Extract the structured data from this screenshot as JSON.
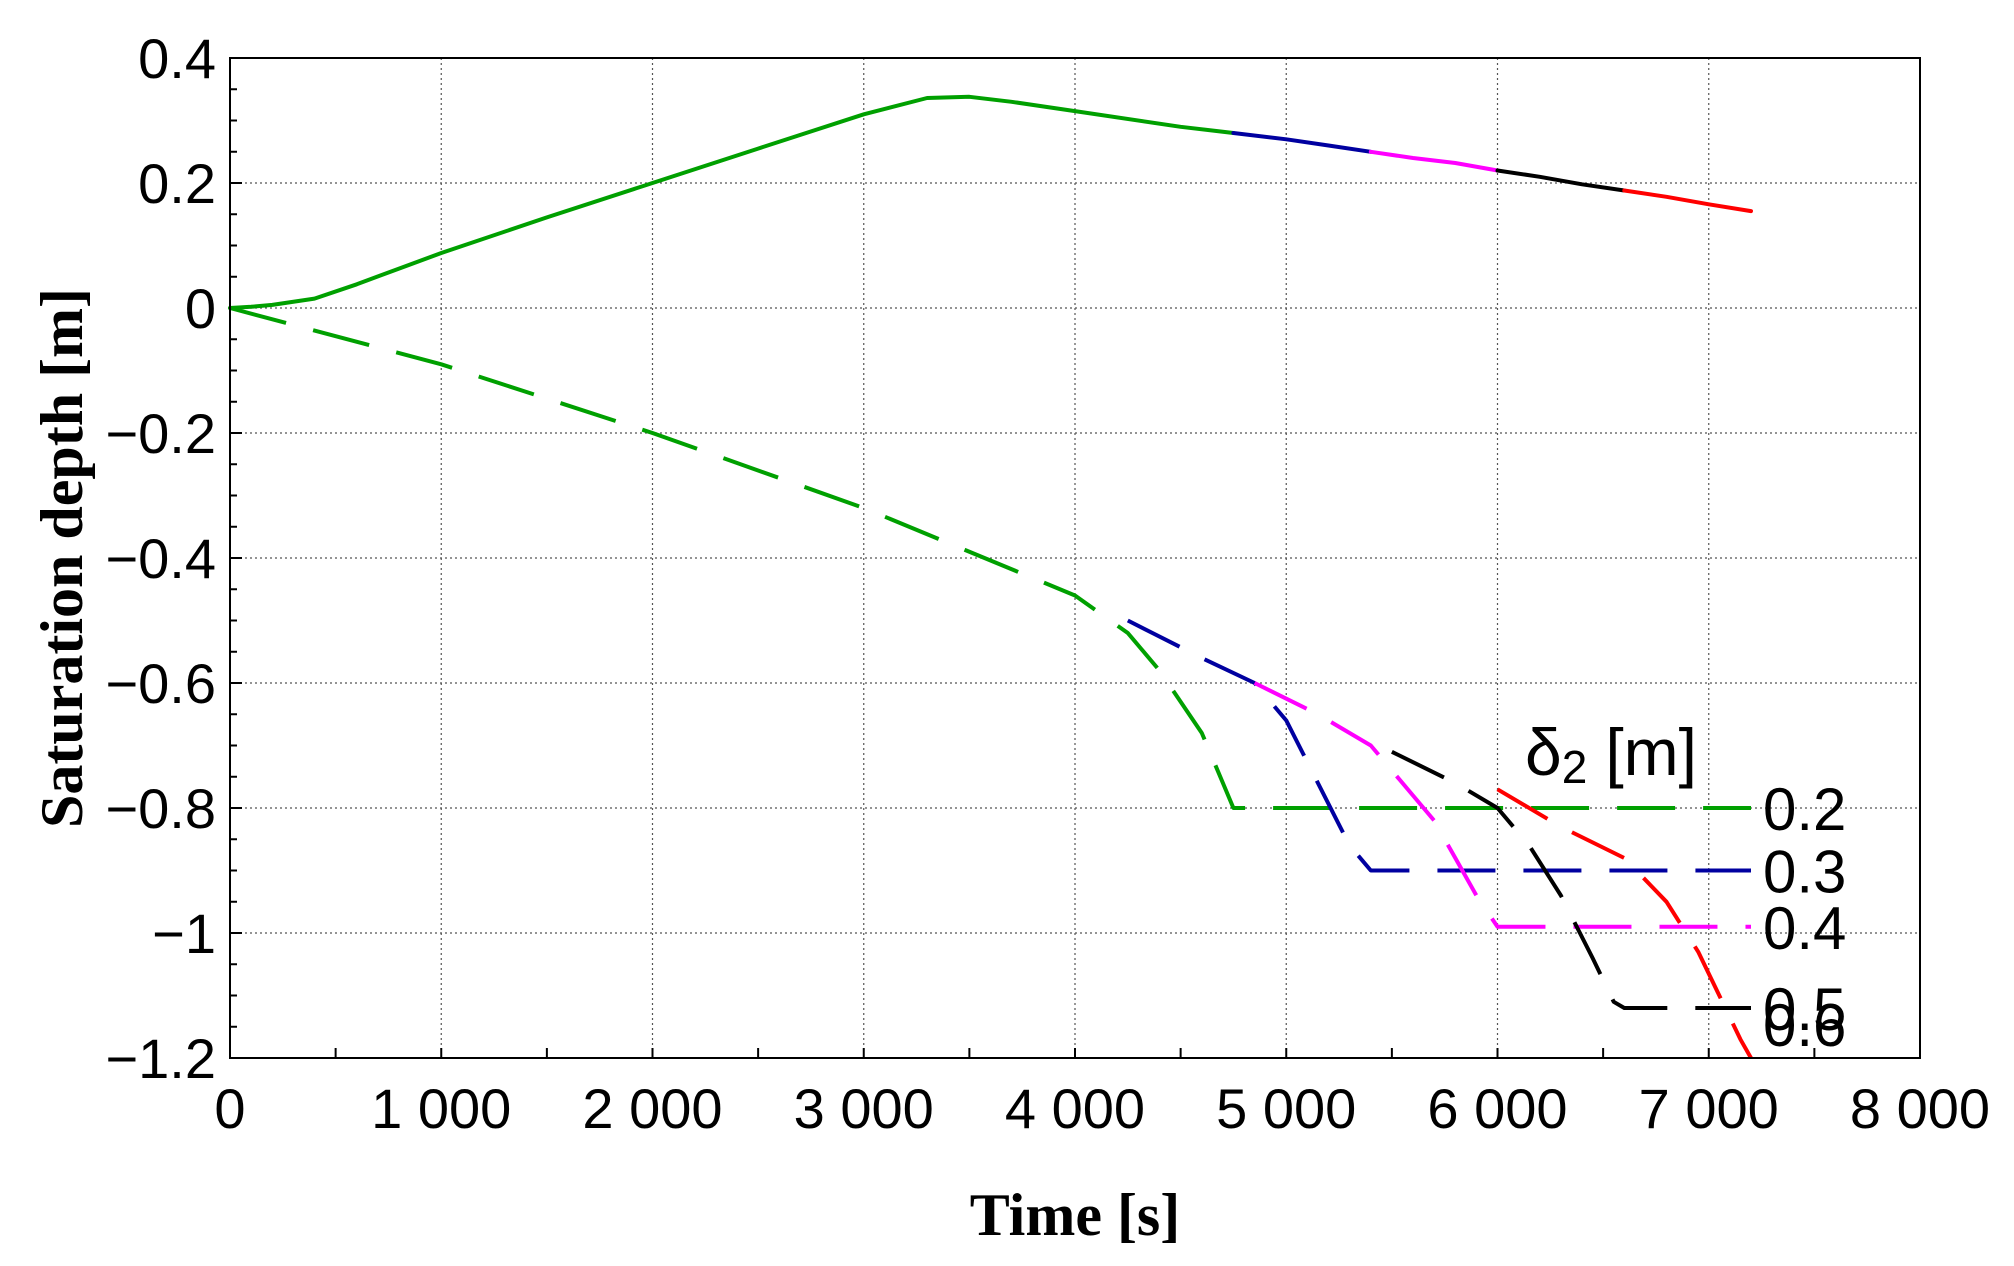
{
  "chart_data": {
    "type": "line",
    "xlabel": "Time [s]",
    "ylabel": "Saturation depth [m]",
    "xlim": [
      0,
      8000
    ],
    "ylim": [
      -1.2,
      0.4
    ],
    "x_ticks": [
      0,
      1000,
      2000,
      3000,
      4000,
      5000,
      6000,
      7000,
      8000
    ],
    "x_tick_labels": [
      "0",
      "1 000",
      "2 000",
      "3 000",
      "4 000",
      "5 000",
      "6 000",
      "7 000",
      "8 000"
    ],
    "y_ticks": [
      0.4,
      0.2,
      0,
      -0.2,
      -0.4,
      -0.6,
      -0.8,
      -1,
      -1.2
    ],
    "y_tick_labels": [
      "0.4",
      "0.2",
      "0",
      "−0.2",
      "−0.4",
      "−0.6",
      "−0.8",
      "−1",
      "−1.2"
    ],
    "grid": true,
    "legend_title_main": "δ",
    "legend_title_sub": "2",
    "legend_title_unit": "[m]",
    "legend_position": "right",
    "series": [
      {
        "name": "0.2",
        "color": "#00a000",
        "solid": [
          [
            0,
            0
          ],
          [
            100,
            0.002
          ],
          [
            200,
            0.005
          ],
          [
            400,
            0.015
          ],
          [
            600,
            0.038
          ],
          [
            800,
            0.063
          ],
          [
            1000,
            0.088
          ],
          [
            1500,
            0.145
          ],
          [
            2000,
            0.2
          ],
          [
            2500,
            0.255
          ],
          [
            3000,
            0.31
          ],
          [
            3300,
            0.336
          ],
          [
            3500,
            0.338
          ],
          [
            3700,
            0.33
          ],
          [
            4000,
            0.315
          ],
          [
            4500,
            0.29
          ],
          [
            4750,
            0.28
          ]
        ],
        "dashed": [
          [
            0,
            0
          ],
          [
            1000,
            -0.09
          ],
          [
            2000,
            -0.2
          ],
          [
            3000,
            -0.32
          ],
          [
            4000,
            -0.46
          ],
          [
            4250,
            -0.52
          ],
          [
            4400,
            -0.58
          ],
          [
            4600,
            -0.68
          ],
          [
            4700,
            -0.76
          ],
          [
            4750,
            -0.8
          ],
          [
            7200,
            -0.8
          ]
        ]
      },
      {
        "name": "0.3",
        "color": "#0000a0",
        "solid": [
          [
            4750,
            0.28
          ],
          [
            5000,
            0.27
          ],
          [
            5200,
            0.26
          ],
          [
            5400,
            0.25
          ]
        ],
        "dashed": [
          [
            4250,
            -0.5
          ],
          [
            4600,
            -0.56
          ],
          [
            4850,
            -0.6
          ],
          [
            5000,
            -0.66
          ],
          [
            5150,
            -0.76
          ],
          [
            5300,
            -0.86
          ],
          [
            5400,
            -0.9
          ],
          [
            7200,
            -0.9
          ]
        ]
      },
      {
        "name": "0.4",
        "color": "#ff00ff",
        "solid": [
          [
            5400,
            0.25
          ],
          [
            5600,
            0.24
          ],
          [
            5800,
            0.232
          ],
          [
            6000,
            0.22
          ]
        ],
        "dashed": [
          [
            4850,
            -0.6
          ],
          [
            5150,
            -0.65
          ],
          [
            5400,
            -0.7
          ],
          [
            5600,
            -0.78
          ],
          [
            5700,
            -0.82
          ],
          [
            5800,
            -0.88
          ],
          [
            5900,
            -0.94
          ],
          [
            6000,
            -0.99
          ],
          [
            7200,
            -0.99
          ]
        ]
      },
      {
        "name": "0.5",
        "color": "#000000",
        "solid": [
          [
            6000,
            0.22
          ],
          [
            6200,
            0.21
          ],
          [
            6400,
            0.198
          ],
          [
            6600,
            0.188
          ]
        ],
        "dashed": [
          [
            5500,
            -0.71
          ],
          [
            5800,
            -0.76
          ],
          [
            6000,
            -0.8
          ],
          [
            6150,
            -0.86
          ],
          [
            6300,
            -0.94
          ],
          [
            6450,
            -1.04
          ],
          [
            6550,
            -1.11
          ],
          [
            6600,
            -1.12
          ],
          [
            7200,
            -1.12
          ]
        ]
      },
      {
        "name": "0.6",
        "color": "#ff0000",
        "solid": [
          [
            6600,
            0.188
          ],
          [
            6800,
            0.178
          ],
          [
            7000,
            0.166
          ],
          [
            7200,
            0.155
          ]
        ],
        "dashed": [
          [
            6000,
            -0.77
          ],
          [
            6300,
            -0.83
          ],
          [
            6600,
            -0.88
          ],
          [
            6800,
            -0.95
          ],
          [
            6950,
            -1.03
          ],
          [
            7050,
            -1.1
          ],
          [
            7150,
            -1.17
          ],
          [
            7200,
            -1.2
          ]
        ]
      }
    ]
  }
}
